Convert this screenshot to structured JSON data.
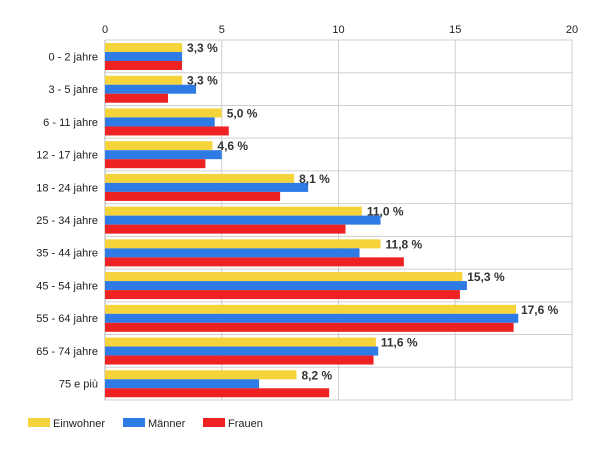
{
  "chart_data": {
    "type": "bar",
    "orientation": "horizontal",
    "categories": [
      "0 - 2 jahre",
      "3 - 5 jahre",
      "6 - 11 jahre",
      "12 - 17 jahre",
      "18 - 24 jahre",
      "25 - 34 jahre",
      "35 - 44 jahre",
      "45 - 54 jahre",
      "55 - 64 jahre",
      "65 - 74 jahre",
      "75 e più"
    ],
    "series": [
      {
        "name": "Einwohner",
        "color": "#f5d33a",
        "values": [
          3.3,
          3.3,
          5.0,
          4.6,
          8.1,
          11.0,
          11.8,
          15.3,
          17.6,
          11.6,
          8.2
        ]
      },
      {
        "name": "Männer",
        "color": "#2e7be6",
        "values": [
          3.3,
          3.9,
          4.7,
          5.0,
          8.7,
          11.8,
          10.9,
          15.5,
          17.7,
          11.7,
          6.6
        ]
      },
      {
        "name": "Frauen",
        "color": "#ee2222",
        "values": [
          3.3,
          2.7,
          5.3,
          4.3,
          7.5,
          10.3,
          12.8,
          15.2,
          17.5,
          11.5,
          9.6
        ]
      }
    ],
    "data_labels": [
      "3,3 %",
      "3,3 %",
      "5,0 %",
      "4,6 %",
      "8,1 %",
      "11,0 %",
      "11,8 %",
      "15,3 %",
      "17,6 %",
      "11,6 %",
      "8,2 %"
    ],
    "x_ticks": [
      "0",
      "5",
      "10",
      "15",
      "20"
    ],
    "xlim": [
      0,
      20
    ],
    "x_tick_values": [
      0,
      5,
      10,
      15,
      20
    ],
    "grid": true,
    "legend_position": "bottom-left",
    "title": "",
    "xlabel": "",
    "ylabel": ""
  }
}
